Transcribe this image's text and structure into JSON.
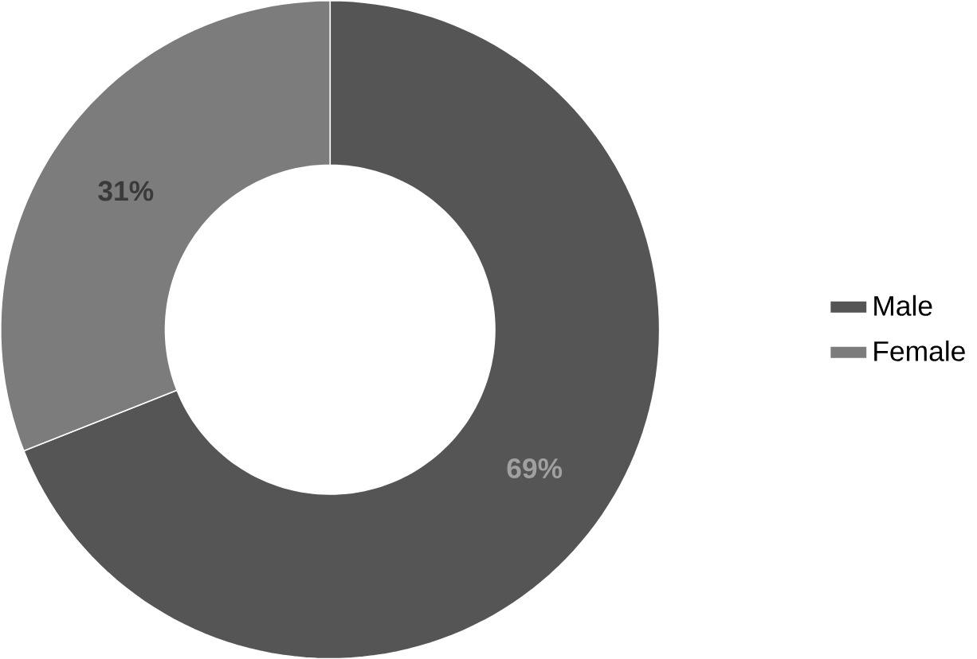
{
  "chart_data": {
    "type": "donut",
    "categories": [
      "Male",
      "Female"
    ],
    "values": [
      69,
      31
    ],
    "colors": [
      "#555555",
      "#7c7c7c"
    ],
    "value_labels": [
      "69%",
      "31%"
    ],
    "legend": "right"
  }
}
